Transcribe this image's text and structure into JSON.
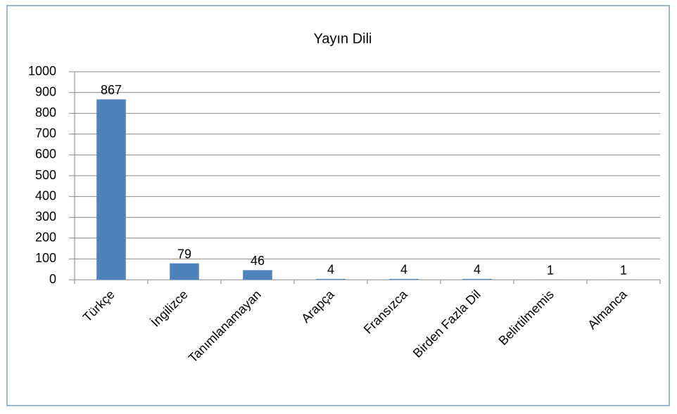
{
  "chart_data": {
    "type": "bar",
    "title": "Yayın Dili",
    "categories": [
      "Türkçe",
      "İngilizce",
      "Tanımlanamayan",
      "Arapça",
      "Fransızca",
      "Birden Fazla Dil",
      "Belirtilmemis",
      "Almanca"
    ],
    "values": [
      867,
      79,
      46,
      4,
      4,
      4,
      1,
      1
    ],
    "color": "#4f81bd",
    "ylim": [
      0,
      1000
    ],
    "yticks": [
      0,
      100,
      200,
      300,
      400,
      500,
      600,
      700,
      800,
      900,
      1000
    ],
    "grid": true
  }
}
